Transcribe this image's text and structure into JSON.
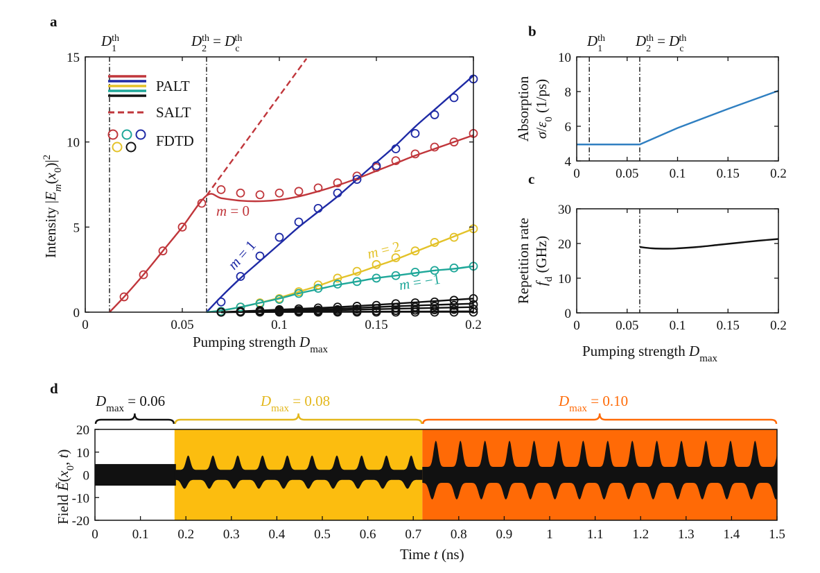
{
  "colors": {
    "red": "#c0363b",
    "blue": "#1e2aa5",
    "yellow": "#e3c229",
    "teal": "#1ea799",
    "black": "#111111",
    "absorption": "#2f7fc1",
    "yellow_band": "#fcbd0f",
    "orange_band": "#ff6a06"
  },
  "panels": {
    "a": "a",
    "b": "b",
    "c": "c",
    "d": "d"
  },
  "chart_data": [
    {
      "panel": "a",
      "type": "line",
      "xlabel": "Pumping strength D_max",
      "ylabel": "Intensity |E_m(x_0)|^2",
      "xlim": [
        0,
        0.2
      ],
      "ylim": [
        0,
        15
      ],
      "xticks": [
        "0",
        "0.05",
        "0.1",
        "0.15",
        "0.2"
      ],
      "yticks": [
        "0",
        "5",
        "10",
        "15"
      ],
      "threshold_labels": [
        "D_1^th",
        "D_2^th = D_c^th"
      ],
      "thresholds": [
        0.0125,
        0.0625
      ],
      "legend": [
        "PALT",
        "SALT",
        "FDTD"
      ],
      "mode_labels": [
        "m = 0",
        "m = 1",
        "m = 2",
        "m = −1"
      ],
      "series": [
        {
          "name": "m=0 PALT",
          "color": "red",
          "style": "solid",
          "x": [
            0.0125,
            0.02,
            0.03,
            0.04,
            0.05,
            0.0625,
            0.07,
            0.08,
            0.09,
            0.1,
            0.11,
            0.12,
            0.13,
            0.14,
            0.15,
            0.16,
            0.17,
            0.18,
            0.19,
            0.2
          ],
          "y": [
            0,
            0.9,
            2.2,
            3.6,
            5.0,
            6.85,
            6.7,
            6.55,
            6.52,
            6.6,
            6.8,
            7.1,
            7.45,
            7.85,
            8.3,
            8.75,
            9.2,
            9.6,
            10.0,
            10.4
          ]
        },
        {
          "name": "SALT",
          "color": "red",
          "style": "dashed",
          "x": [
            0.0625,
            0.114
          ],
          "y": [
            6.85,
            14.9
          ]
        },
        {
          "name": "m=1 PALT",
          "color": "blue",
          "style": "solid",
          "x": [
            0.0625,
            0.07,
            0.08,
            0.09,
            0.1,
            0.11,
            0.12,
            0.13,
            0.14,
            0.15,
            0.16,
            0.17,
            0.18,
            0.19,
            0.2
          ],
          "y": [
            0,
            0.9,
            2.0,
            3.0,
            4.0,
            5.0,
            5.9,
            6.8,
            7.8,
            8.8,
            9.8,
            10.9,
            11.9,
            12.9,
            13.9
          ]
        },
        {
          "name": "m=2 PALT",
          "color": "yellow",
          "style": "solid",
          "x": [
            0.0625,
            0.07,
            0.08,
            0.09,
            0.1,
            0.11,
            0.12,
            0.13,
            0.14,
            0.15,
            0.16,
            0.17,
            0.18,
            0.19,
            0.2
          ],
          "y": [
            0,
            0.1,
            0.3,
            0.55,
            0.85,
            1.2,
            1.55,
            1.95,
            2.3,
            2.7,
            3.1,
            3.55,
            4.0,
            4.45,
            4.9
          ]
        },
        {
          "name": "m=-1 PALT",
          "color": "teal",
          "style": "solid",
          "x": [
            0.0625,
            0.07,
            0.08,
            0.09,
            0.1,
            0.11,
            0.12,
            0.13,
            0.14,
            0.15,
            0.16,
            0.17,
            0.18,
            0.19,
            0.2
          ],
          "y": [
            0,
            0.1,
            0.3,
            0.55,
            0.8,
            1.1,
            1.35,
            1.6,
            1.8,
            2.0,
            2.15,
            2.3,
            2.45,
            2.55,
            2.7
          ]
        },
        {
          "name": "m=±3 PALT",
          "color": "black",
          "style": "solid",
          "x": [
            0.07,
            0.1,
            0.13,
            0.16,
            0.2
          ],
          "y": [
            0,
            0.15,
            0.3,
            0.5,
            0.8
          ]
        },
        {
          "name": "m=±4 PALT",
          "color": "black",
          "style": "solid",
          "x": [
            0.07,
            0.1,
            0.13,
            0.16,
            0.2
          ],
          "y": [
            0,
            0.1,
            0.2,
            0.35,
            0.5
          ]
        },
        {
          "name": "m=±5 PALT",
          "color": "black",
          "style": "solid",
          "x": [
            0.07,
            0.1,
            0.13,
            0.16,
            0.2
          ],
          "y": [
            0,
            0.05,
            0.12,
            0.2,
            0.3
          ]
        },
        {
          "name": "m=±6 PALT",
          "color": "black",
          "style": "solid",
          "x": [
            0.07,
            0.2
          ],
          "y": [
            0,
            0.05
          ]
        }
      ],
      "markers": [
        {
          "name": "FDTD m=0",
          "color": "red",
          "x": [
            0.02,
            0.03,
            0.04,
            0.05,
            0.06,
            0.07,
            0.08,
            0.09,
            0.1,
            0.11,
            0.12,
            0.13,
            0.14,
            0.15,
            0.16,
            0.17,
            0.18,
            0.19,
            0.2
          ],
          "y": [
            0.9,
            2.2,
            3.6,
            5.0,
            6.4,
            7.2,
            7.0,
            6.9,
            7.0,
            7.1,
            7.3,
            7.6,
            8.0,
            8.5,
            8.9,
            9.3,
            9.7,
            10.0,
            10.5
          ]
        },
        {
          "name": "FDTD m=1",
          "color": "blue",
          "x": [
            0.07,
            0.08,
            0.09,
            0.1,
            0.11,
            0.12,
            0.13,
            0.14,
            0.15,
            0.16,
            0.17,
            0.18,
            0.19,
            0.2
          ],
          "y": [
            0.6,
            2.1,
            3.3,
            4.4,
            5.3,
            6.1,
            7.0,
            7.8,
            8.6,
            9.6,
            10.5,
            11.6,
            12.6,
            13.7
          ]
        },
        {
          "name": "FDTD m=2",
          "color": "yellow",
          "x": [
            0.07,
            0.08,
            0.09,
            0.1,
            0.11,
            0.12,
            0.13,
            0.14,
            0.15,
            0.16,
            0.17,
            0.18,
            0.19,
            0.2
          ],
          "y": [
            0.05,
            0.3,
            0.55,
            0.8,
            1.2,
            1.6,
            2.0,
            2.4,
            2.8,
            3.2,
            3.6,
            4.1,
            4.4,
            4.9
          ]
        },
        {
          "name": "FDTD m=-1",
          "color": "teal",
          "x": [
            0.07,
            0.08,
            0.09,
            0.1,
            0.11,
            0.12,
            0.13,
            0.14,
            0.15,
            0.16,
            0.17,
            0.18,
            0.19,
            0.2
          ],
          "y": [
            0.05,
            0.3,
            0.5,
            0.75,
            1.1,
            1.4,
            1.65,
            1.8,
            2.0,
            2.15,
            2.35,
            2.45,
            2.6,
            2.7
          ]
        },
        {
          "name": "FDTD m=3",
          "color": "black",
          "x": [
            0.07,
            0.08,
            0.09,
            0.1,
            0.11,
            0.12,
            0.13,
            0.14,
            0.15,
            0.16,
            0.17,
            0.18,
            0.19,
            0.2
          ],
          "y": [
            0,
            0.05,
            0.1,
            0.15,
            0.2,
            0.25,
            0.3,
            0.35,
            0.4,
            0.5,
            0.55,
            0.6,
            0.7,
            0.8
          ]
        },
        {
          "name": "FDTD m=4",
          "color": "black",
          "x": [
            0.07,
            0.08,
            0.09,
            0.1,
            0.11,
            0.12,
            0.13,
            0.14,
            0.15,
            0.16,
            0.17,
            0.18,
            0.19,
            0.2
          ],
          "y": [
            0,
            0.02,
            0.05,
            0.08,
            0.1,
            0.12,
            0.15,
            0.18,
            0.22,
            0.26,
            0.3,
            0.35,
            0.4,
            0.45
          ]
        },
        {
          "name": "FDTD m=5",
          "color": "black",
          "x": [
            0.07,
            0.08,
            0.09,
            0.1,
            0.11,
            0.12,
            0.13,
            0.14,
            0.15,
            0.16,
            0.17,
            0.18,
            0.19,
            0.2
          ],
          "y": [
            0,
            0,
            0.02,
            0.03,
            0.04,
            0.05,
            0.06,
            0.07,
            0.08,
            0.1,
            0.12,
            0.14,
            0.16,
            0.18
          ]
        },
        {
          "name": "FDTD m=6",
          "color": "black",
          "x": [
            0.07,
            0.08,
            0.09,
            0.1,
            0.11,
            0.12,
            0.13,
            0.14,
            0.15,
            0.16,
            0.17,
            0.18,
            0.19,
            0.2
          ],
          "y": [
            0,
            0,
            0,
            0,
            0,
            0,
            0,
            0,
            0,
            0,
            0,
            0,
            0,
            0
          ]
        }
      ]
    },
    {
      "panel": "b",
      "type": "line",
      "ylabel_1": "Absorption",
      "ylabel_2": "σ/ε_0 (1/ps)",
      "xlim": [
        0,
        0.2
      ],
      "ylim": [
        4,
        10
      ],
      "xticks": [
        "0",
        "0.05",
        "0.1",
        "0.15",
        "0.2"
      ],
      "yticks": [
        "4",
        "6",
        "8",
        "10"
      ],
      "threshold_labels": [
        "D_1^th",
        "D_2^th = D_c^th"
      ],
      "thresholds": [
        0.0125,
        0.0625
      ],
      "series": [
        {
          "name": "absorption",
          "color": "absorption",
          "x": [
            0,
            0.0625,
            0.1,
            0.15,
            0.2
          ],
          "y": [
            4.95,
            4.95,
            5.9,
            7.0,
            8.05
          ]
        }
      ]
    },
    {
      "panel": "c",
      "type": "line",
      "xlabel": "Pumping strength D_max",
      "ylabel_1": "Repetition rate",
      "ylabel_2": "f_d (GHz)",
      "xlim": [
        0,
        0.2
      ],
      "ylim": [
        0,
        30
      ],
      "xticks": [
        "0",
        "0.05",
        "0.1",
        "0.15",
        "0.2"
      ],
      "yticks": [
        "0",
        "10",
        "20",
        "30"
      ],
      "thresholds": [
        0.0625
      ],
      "series": [
        {
          "name": "repetition rate",
          "color": "black",
          "x": [
            0.0625,
            0.075,
            0.09,
            0.1,
            0.12,
            0.14,
            0.16,
            0.18,
            0.2
          ],
          "y": [
            19.0,
            18.6,
            18.5,
            18.6,
            19.0,
            19.6,
            20.2,
            20.8,
            21.3
          ]
        }
      ]
    },
    {
      "panel": "d",
      "type": "line",
      "xlabel": "Time t (ns)",
      "ylabel": "Field Ẽ(x_0, t)",
      "xlim": [
        0,
        1.5
      ],
      "ylim": [
        -20,
        20
      ],
      "xticks": [
        "0",
        "0.1",
        "0.2",
        "0.3",
        "0.4",
        "0.5",
        "0.6",
        "0.7",
        "0.8",
        "0.9",
        "1",
        "1.1",
        "1.2",
        "1.3",
        "1.4",
        "1.5"
      ],
      "yticks": [
        "20",
        "10",
        "0",
        "-10",
        "-20"
      ],
      "segments": [
        {
          "label": "D_max = 0.06",
          "color": "black",
          "t_start": 0,
          "t_end": 0.175,
          "amplitude": 5.0,
          "pulse_period_ns": 0
        },
        {
          "label": "D_max = 0.08",
          "color": "yellow_band",
          "t_start": 0.175,
          "t_end": 0.72,
          "amplitude": 8.5,
          "pulse_period_ns": 0.0545
        },
        {
          "label": "D_max = 0.10",
          "color": "orange_band",
          "t_start": 0.72,
          "t_end": 1.5,
          "amplitude": 15.0,
          "pulse_period_ns": 0.054
        }
      ],
      "segment_labels": [
        "D_max = 0.06",
        "D_max = 0.08",
        "D_max = 0.10"
      ]
    }
  ]
}
